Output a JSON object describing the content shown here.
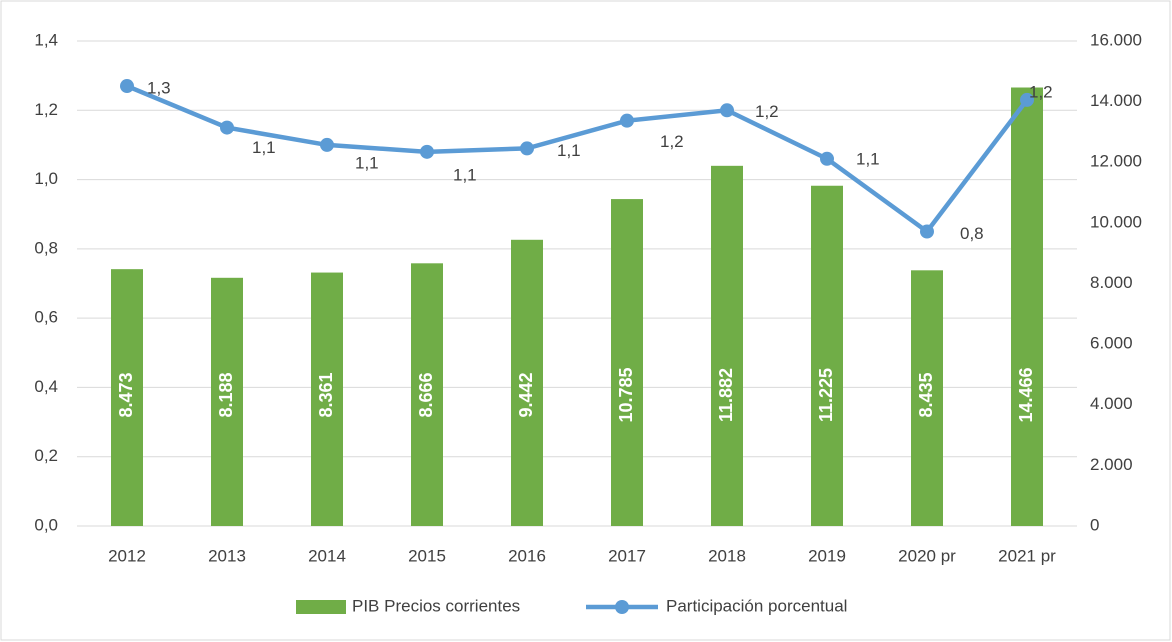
{
  "chart_data": {
    "type": "bar-line",
    "categories": [
      "2012",
      "2013",
      "2014",
      "2015",
      "2016",
      "2017",
      "2018",
      "2019",
      "2020 pr",
      "2021 pr"
    ],
    "series": [
      {
        "name": "PIB Precios corrientes",
        "type": "bar",
        "axis": "y2",
        "color": "#70ad47",
        "values": [
          8473,
          8188,
          8361,
          8666,
          9442,
          10785,
          11882,
          11225,
          8435,
          14466
        ],
        "value_labels": [
          "8.473",
          "8.188",
          "8.361",
          "8.666",
          "9.442",
          "10.785",
          "11.882",
          "11.225",
          "8.435",
          "14.466"
        ]
      },
      {
        "name": "Participación porcentual",
        "type": "line",
        "axis": "y",
        "color": "#5b9bd5",
        "values": [
          1.27,
          1.15,
          1.1,
          1.08,
          1.09,
          1.17,
          1.2,
          1.06,
          0.85,
          1.23
        ],
        "value_labels": [
          "1,3",
          "1,1",
          "1,1",
          "1,1",
          "1,1",
          "1,2",
          "1,2",
          "1,1",
          "0,8",
          "1,2"
        ]
      }
    ],
    "ylim": [
      0,
      1.4
    ],
    "yticks": [
      {
        "value": 0,
        "label": "0,0"
      },
      {
        "value": 0.2,
        "label": "0,2"
      },
      {
        "value": 0.4,
        "label": "0,4"
      },
      {
        "value": 0.6,
        "label": "0,6"
      },
      {
        "value": 0.8,
        "label": "0,8"
      },
      {
        "value": 1.0,
        "label": "1,0"
      },
      {
        "value": 1.2,
        "label": "1,2"
      },
      {
        "value": 1.4,
        "label": "1,4"
      }
    ],
    "y2lim": [
      0,
      16000
    ],
    "y2ticks": [
      0,
      {
        "value": 2000,
        "label": "2.000"
      },
      {
        "value": 4000,
        "label": "4.000"
      },
      {
        "value": 6000,
        "label": "6.000"
      },
      {
        "value": 8000,
        "label": "8.000"
      },
      {
        "value": 10000,
        "label": "10.000"
      },
      {
        "value": 12000,
        "label": "12.000"
      },
      {
        "value": 14000,
        "label": "14.000"
      },
      {
        "value": 16000,
        "label": "16.000"
      }
    ],
    "grid": true,
    "legend": "bottom"
  }
}
